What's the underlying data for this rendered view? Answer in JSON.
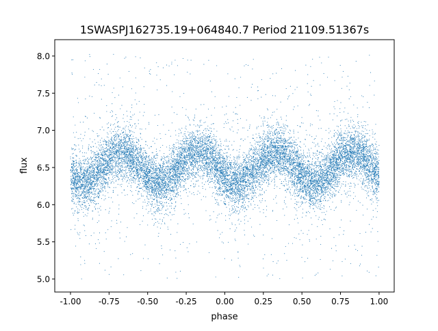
{
  "chart_data": {
    "type": "scatter",
    "title": "1SWASPJ162735.19+064840.7 Period 21109.51367s",
    "xlabel": "phase",
    "ylabel": "flux",
    "xlim": [
      -1.102,
      1.098
    ],
    "ylim": [
      4.825,
      8.22
    ],
    "xticks": [
      "-1.00",
      "-0.75",
      "-0.50",
      "-0.25",
      "0.00",
      "0.25",
      "0.50",
      "0.75",
      "1.00"
    ],
    "xtick_values": [
      -1,
      -0.75,
      -0.5,
      -0.25,
      0,
      0.25,
      0.5,
      0.75,
      1
    ],
    "yticks": [
      "5.0",
      "5.5",
      "6.0",
      "6.5",
      "7.0",
      "7.5",
      "8.0"
    ],
    "ytick_values": [
      5,
      5.5,
      6,
      6.5,
      7,
      7.5,
      8
    ],
    "grid": false,
    "marker_color": "#1f77b4",
    "binned_trend": {
      "x": [
        -1.0,
        -0.95,
        -0.9,
        -0.85,
        -0.8,
        -0.75,
        -0.7,
        -0.65,
        -0.6,
        -0.55,
        -0.5,
        -0.45,
        -0.4,
        -0.35,
        -0.3,
        -0.25,
        -0.2,
        -0.15,
        -0.1,
        -0.05,
        0.0,
        0.05,
        0.1,
        0.15,
        0.2,
        0.25,
        0.3,
        0.35,
        0.4,
        0.45,
        0.5,
        0.55,
        0.6,
        0.65,
        0.7,
        0.75,
        0.8,
        0.85,
        0.9,
        0.95,
        1.0
      ],
      "y": [
        6.38,
        6.3,
        6.29,
        6.36,
        6.49,
        6.62,
        6.7,
        6.71,
        6.64,
        6.51,
        6.38,
        6.3,
        6.29,
        6.36,
        6.49,
        6.62,
        6.7,
        6.71,
        6.64,
        6.51,
        6.38,
        6.3,
        6.29,
        6.36,
        6.49,
        6.62,
        6.7,
        6.71,
        6.64,
        6.51,
        6.38,
        6.3,
        6.29,
        6.36,
        6.49,
        6.62,
        6.7,
        6.71,
        6.64,
        6.51,
        6.38
      ]
    }
  }
}
